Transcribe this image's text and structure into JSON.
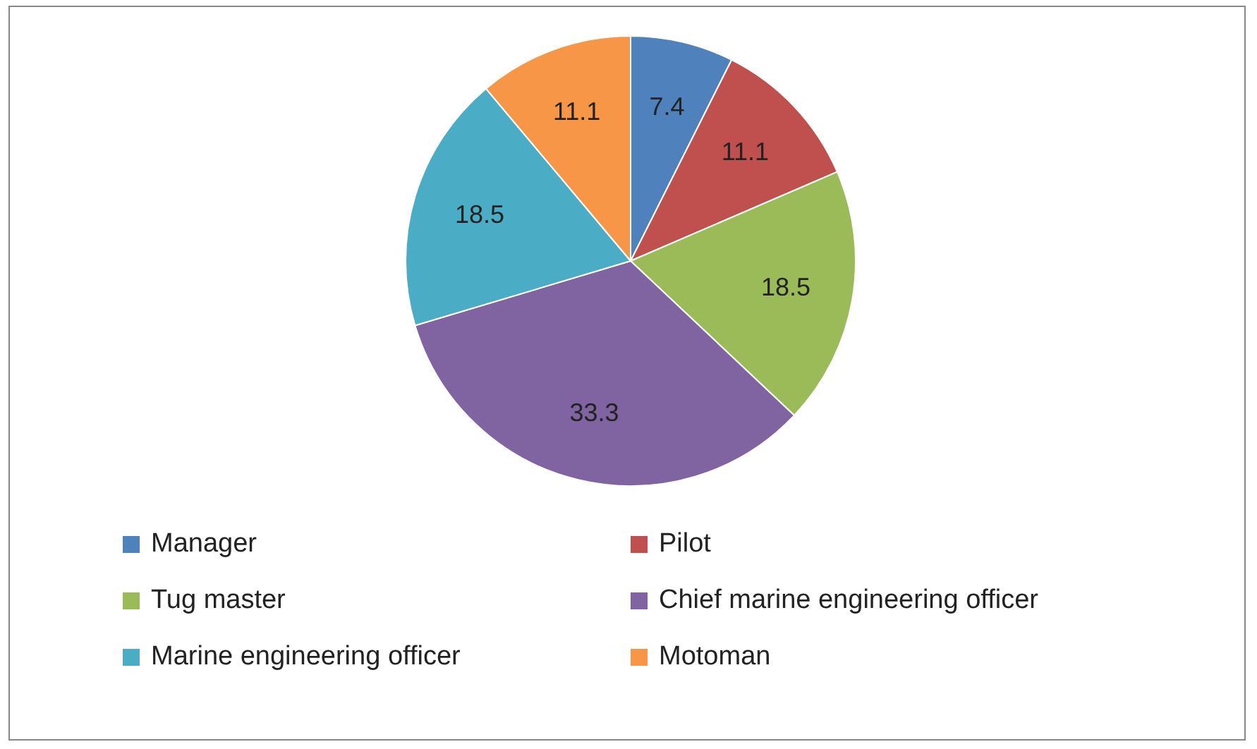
{
  "chart_data": {
    "type": "pie",
    "categories": [
      "Manager",
      "Pilot",
      "Tug master",
      "Chief marine engineering officer",
      "Marine engineering officer",
      "Motoman"
    ],
    "values": [
      7.4,
      11.1,
      18.5,
      33.3,
      18.5,
      11.1
    ],
    "colors": [
      "#4f81bd",
      "#c0504d",
      "#9bbb59",
      "#8064a2",
      "#4bacc6",
      "#f79646"
    ],
    "data_labels": true,
    "legend": "bottom"
  }
}
